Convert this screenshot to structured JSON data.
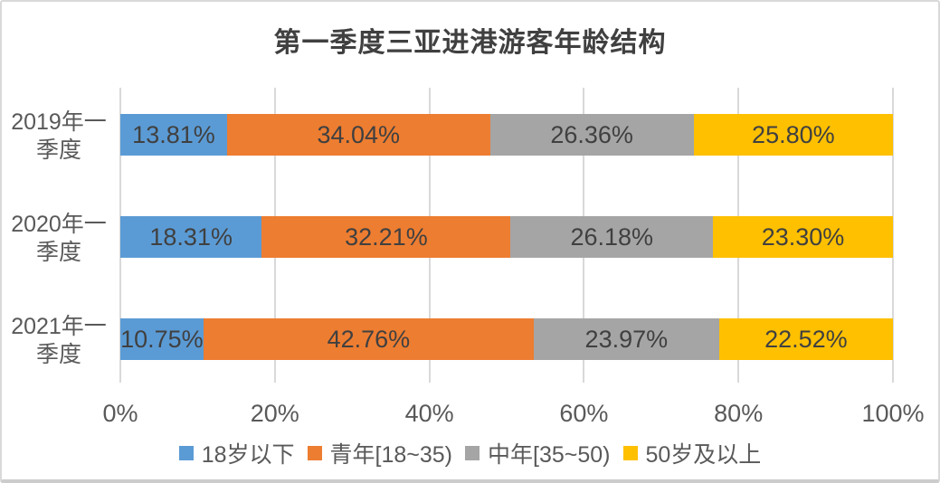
{
  "chart_data": {
    "type": "bar",
    "stacked": true,
    "orientation": "horizontal",
    "title": "第一季度三亚进港游客年龄结构",
    "categories": [
      "2019年一季度",
      "2020年一季度",
      "2021年一季度"
    ],
    "category_lines": [
      [
        "2019年一",
        "季度"
      ],
      [
        "2020年一",
        "季度"
      ],
      [
        "2021年一",
        "季度"
      ]
    ],
    "series": [
      {
        "name": "18岁以下",
        "color": "#5B9BD5",
        "values": [
          13.81,
          18.31,
          10.75
        ]
      },
      {
        "name": "青年[18~35)",
        "color": "#ED7D31",
        "values": [
          34.04,
          32.21,
          42.76
        ]
      },
      {
        "name": "中年[35~50)",
        "color": "#A5A5A5",
        "values": [
          26.36,
          26.18,
          23.97
        ]
      },
      {
        "name": "50岁及以上",
        "color": "#FFC000",
        "values": [
          25.8,
          23.3,
          22.52
        ]
      }
    ],
    "data_labels": [
      [
        "13.81%",
        "34.04%",
        "26.36%",
        "25.80%"
      ],
      [
        "18.31%",
        "32.21%",
        "26.18%",
        "23.30%"
      ],
      [
        "10.75%",
        "42.76%",
        "23.97%",
        "22.52%"
      ]
    ],
    "x_ticks": [
      "0%",
      "20%",
      "40%",
      "60%",
      "80%",
      "100%"
    ],
    "xlim": [
      0,
      100
    ],
    "grid": true,
    "gridline_color": "#d9d9d9",
    "legend_position": "bottom"
  }
}
